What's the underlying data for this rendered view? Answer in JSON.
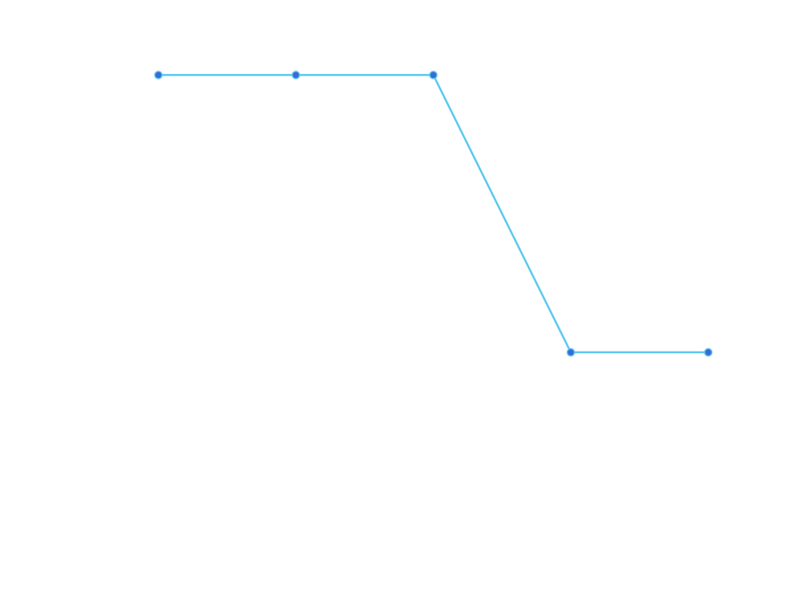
{
  "chart_data": {
    "type": "line",
    "x": [
      1,
      2,
      3,
      4,
      5
    ],
    "series": [
      {
        "values": [
          2,
          2,
          2,
          0,
          0
        ]
      }
    ],
    "ylim": [
      -1.75,
      2.5
    ],
    "grid": false,
    "legend": "none",
    "colors": {
      "line": "#5bc8f0",
      "marker_fill": "#3a6ad6",
      "marker_stroke": "#5bc8f0"
    }
  }
}
